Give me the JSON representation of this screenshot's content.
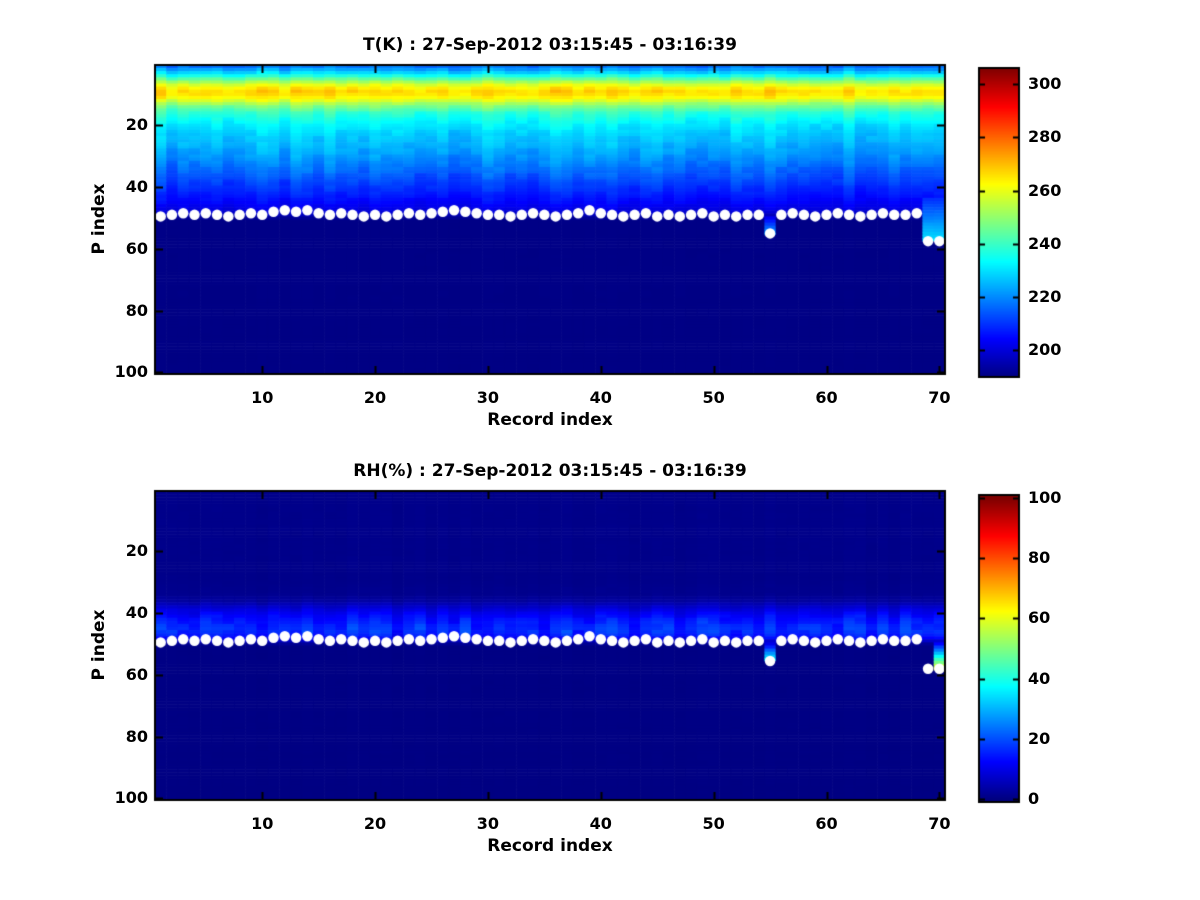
{
  "colors": {
    "background": "#ffffff",
    "axis": "#000000",
    "text": "#000000",
    "marker": "#ffffff",
    "deep_field": "#000084"
  },
  "chart_data": [
    {
      "type": "heatmap",
      "title": "T(K) : 27-Sep-2012 03:15:45 - 03:16:39",
      "xlabel": "Record index",
      "ylabel": "P index",
      "x_domain": [
        0.5,
        70.5
      ],
      "y_domain": [
        0.5,
        100.5
      ],
      "y_axis_reversed": true,
      "grid": false,
      "x_ticks": [
        10,
        20,
        30,
        40,
        50,
        60,
        70
      ],
      "y_ticks": [
        20,
        40,
        60,
        80,
        100
      ],
      "n_records": 70,
      "n_levels": 100,
      "colormap": "jet",
      "color_range": [
        190,
        306
      ],
      "colorbar_domain": [
        190,
        306
      ],
      "colorbar_ticks": [
        200,
        220,
        240,
        260,
        280,
        300
      ],
      "units": "K",
      "profile_p": [
        0,
        1,
        2,
        3,
        4,
        5,
        6,
        7,
        8,
        9,
        10,
        11,
        12,
        13,
        14,
        15,
        16,
        18,
        20,
        23,
        26,
        30,
        34,
        38,
        42,
        45,
        47,
        48.5,
        49.5,
        50.5,
        100
      ],
      "profile_value": [
        215,
        218,
        223,
        229,
        236,
        244,
        252,
        259,
        264,
        267,
        266,
        263,
        258,
        252,
        247,
        243,
        239,
        235,
        231.5,
        228,
        225.5,
        222,
        217,
        212.5,
        208,
        204.5,
        201.5,
        199,
        194,
        190.8,
        190.5
      ],
      "column_jitter_amp": 6,
      "surface_marker_p": [
        49.5,
        49,
        48.5,
        49,
        48.5,
        49,
        49.5,
        49,
        48.5,
        49,
        48,
        47.5,
        48,
        47.5,
        48.5,
        49,
        48.5,
        49,
        49.5,
        49,
        49.5,
        49,
        48.5,
        49,
        48.5,
        48,
        47.5,
        48,
        48.5,
        49,
        49,
        49.5,
        49,
        48.5,
        49,
        49.5,
        49,
        48.5,
        47.5,
        48.5,
        49,
        49.5,
        49,
        48.5,
        49.5,
        49,
        49.5,
        49,
        48.5,
        49.5,
        49,
        49.5,
        49,
        49,
        55,
        49,
        48.5,
        49,
        49.5,
        49,
        48.5,
        49,
        49.5,
        49,
        48.5,
        49,
        49,
        48.5,
        57.5,
        57.5
      ],
      "marker": {
        "shape": "circle",
        "color": "#ffffff",
        "diameter": 10.5
      },
      "anomalies": [
        {
          "records": [
            55
          ],
          "p_from": 50,
          "p_to": 55,
          "value_from": 203,
          "value_to": 222
        },
        {
          "records": [
            69,
            70
          ],
          "p_from": 44,
          "p_to": 57.5,
          "value_from": 210,
          "value_to": 231
        }
      ]
    },
    {
      "type": "heatmap",
      "title": "RH(%) : 27-Sep-2012 03:15:45 - 03:16:39",
      "xlabel": "Record index",
      "ylabel": "P index",
      "x_domain": [
        0.5,
        70.5
      ],
      "y_domain": [
        0.5,
        100.5
      ],
      "y_axis_reversed": true,
      "grid": false,
      "x_ticks": [
        10,
        20,
        30,
        40,
        50,
        60,
        70
      ],
      "y_ticks": [
        20,
        40,
        60,
        80,
        100
      ],
      "n_records": 70,
      "n_levels": 100,
      "colormap": "jet",
      "color_range": [
        0,
        100
      ],
      "colorbar_domain": [
        -1,
        101
      ],
      "colorbar_ticks": [
        0,
        20,
        40,
        60,
        80,
        100
      ],
      "units": "%",
      "profile_p": [
        0,
        30,
        34,
        36,
        38,
        40,
        42,
        44,
        45.5,
        47,
        48,
        49,
        50,
        51,
        100
      ],
      "profile_value": [
        1,
        1,
        1.5,
        3,
        7,
        11,
        14,
        16,
        17,
        15,
        12,
        7,
        2,
        0.5,
        0.3
      ],
      "column_jitter_amp": 9,
      "surface_marker_p": [
        49.5,
        49,
        48.5,
        49,
        48.5,
        49,
        49.5,
        49,
        48.5,
        49,
        48,
        47.5,
        48,
        47.5,
        48.5,
        49,
        48.5,
        49,
        49.5,
        49,
        49.5,
        49,
        48.5,
        49,
        48.5,
        48,
        47.5,
        48,
        48.5,
        49,
        49,
        49.5,
        49,
        48.5,
        49,
        49.5,
        49,
        48.5,
        47.5,
        48.5,
        49,
        49.5,
        49,
        48.5,
        49.5,
        49,
        49.5,
        49,
        48.5,
        49.5,
        49,
        49.5,
        49,
        49,
        55.5,
        49,
        48.5,
        49,
        49.5,
        49,
        48.5,
        49,
        49.5,
        49,
        48.5,
        49,
        49,
        48.5,
        58,
        58
      ],
      "marker": {
        "shape": "circle",
        "color": "#ffffff",
        "diameter": 10.5
      },
      "anomalies": [
        {
          "records": [
            55
          ],
          "p_from": 50,
          "p_to": 55.5,
          "value_from": 10,
          "value_to": 38
        },
        {
          "records": [
            70
          ],
          "p_from": 50,
          "p_to": 58,
          "value_from": 12,
          "value_to": 62
        }
      ]
    }
  ]
}
